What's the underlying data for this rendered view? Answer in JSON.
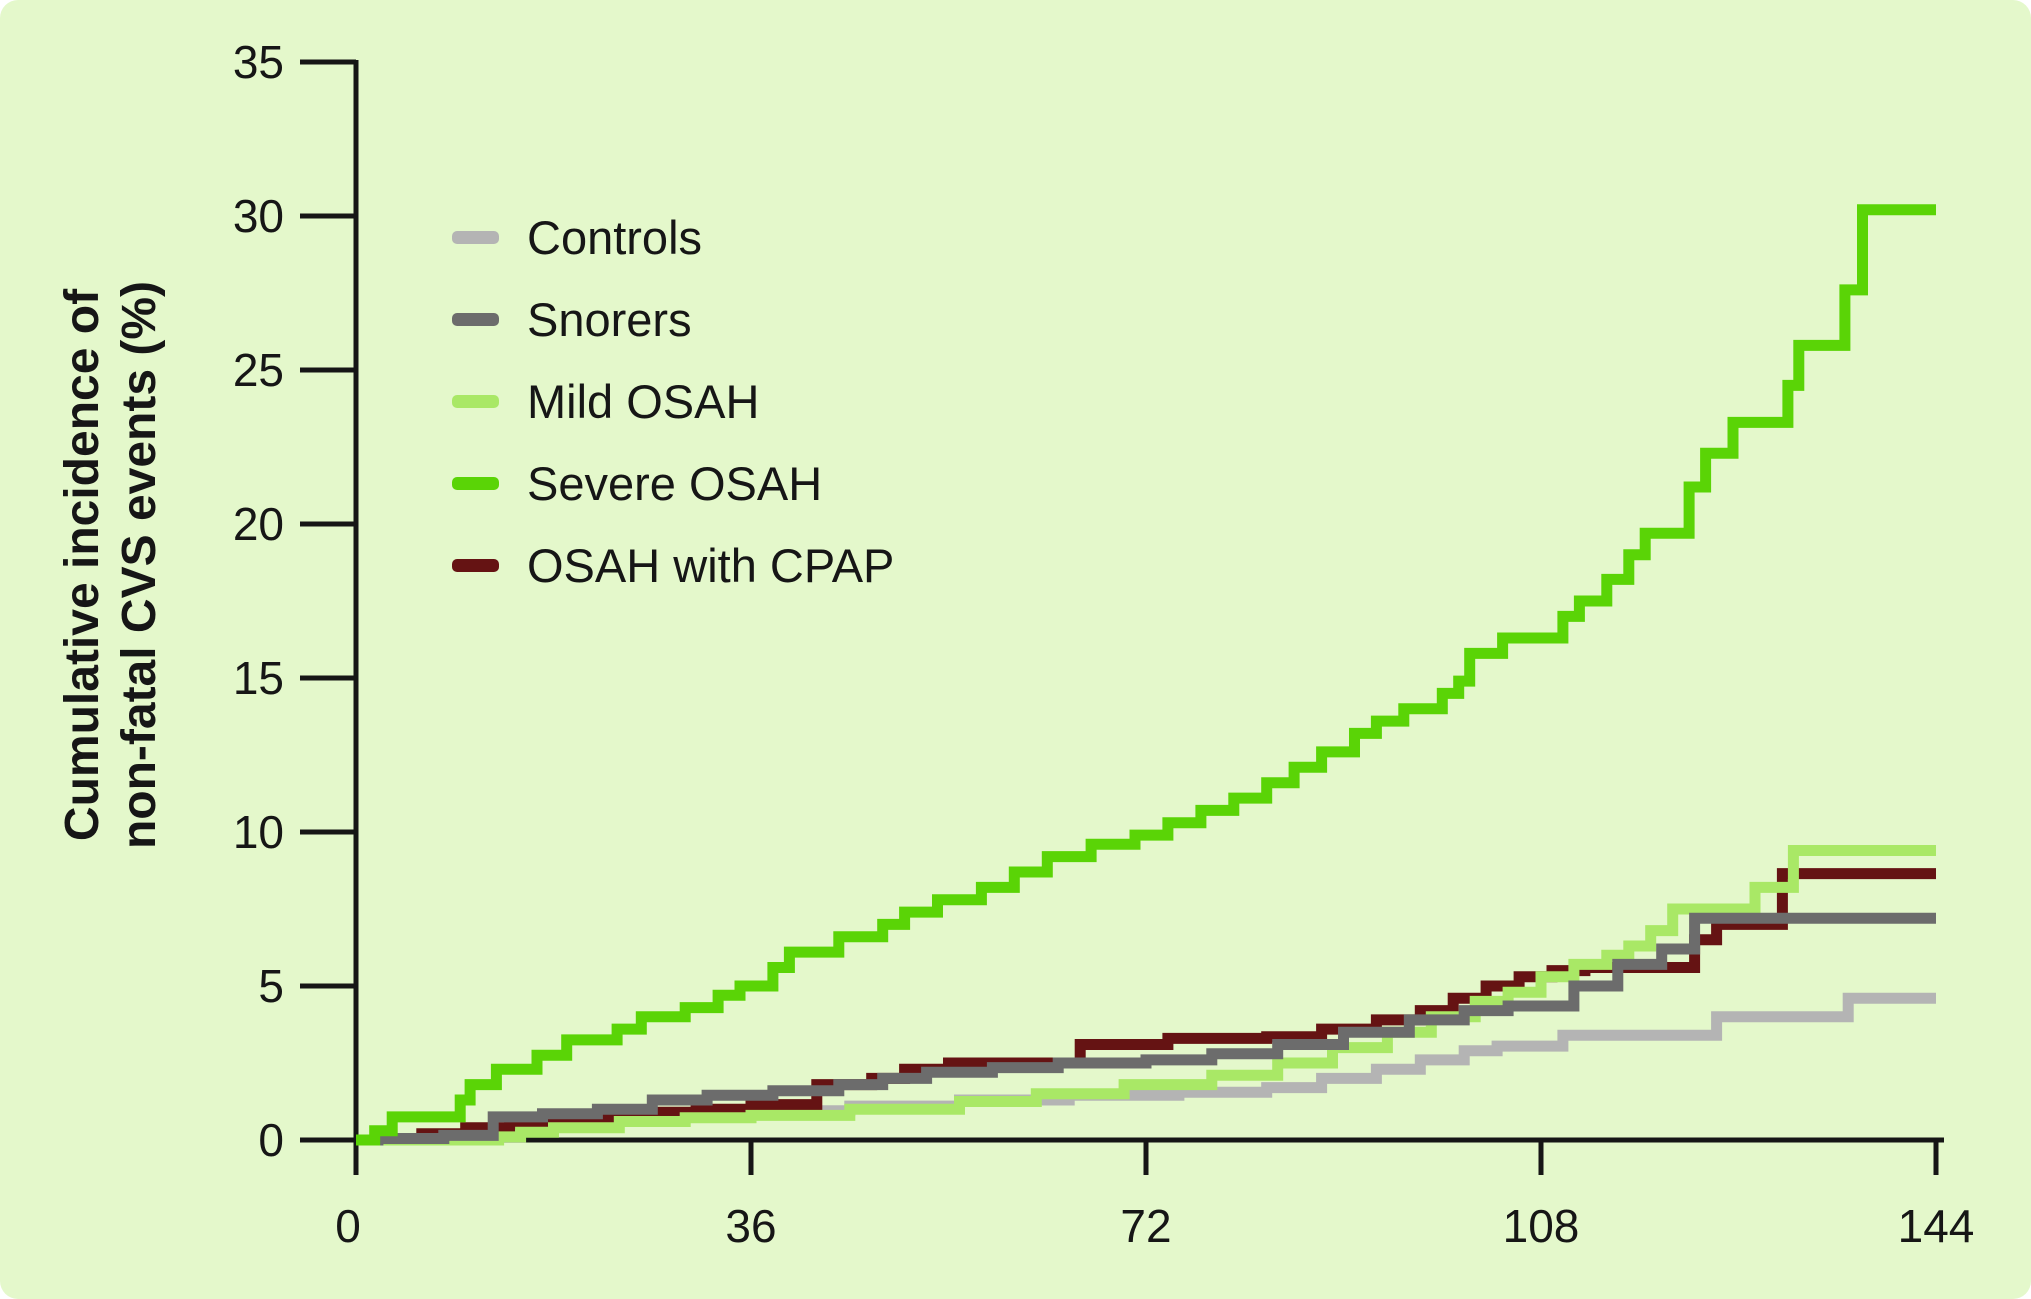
{
  "figure": {
    "background_color": "#e4f8cb",
    "text_color": "#161616",
    "axis_color": "#161616"
  },
  "chart_data": {
    "type": "line",
    "subtype": "step-after",
    "title": "",
    "xlabel": "",
    "ylabel": "Cumulative incidence of non-fatal CVS events (%)",
    "ylabel_line1": "Cumulative incidence of",
    "ylabel_line2": "non-fatal CVS events (%)",
    "xlim": [
      0,
      144
    ],
    "ylim": [
      0,
      35
    ],
    "x_ticks": [
      0,
      36,
      72,
      108,
      144
    ],
    "y_ticks": [
      0,
      5,
      10,
      15,
      20,
      25,
      30,
      35
    ],
    "grid": false,
    "legend_position": "upper-left-inside",
    "series": [
      {
        "name": "Controls",
        "color": "#b4b4b4",
        "end_value": 4.6,
        "points": [
          [
            0,
            0
          ],
          [
            3,
            0.05
          ],
          [
            12,
            0.3
          ],
          [
            15,
            0.55
          ],
          [
            20,
            0.65
          ],
          [
            27,
            0.8
          ],
          [
            35,
            0.95
          ],
          [
            45,
            1.1
          ],
          [
            55,
            1.3
          ],
          [
            65,
            1.45
          ],
          [
            75,
            1.55
          ],
          [
            83,
            1.7
          ],
          [
            88,
            2.0
          ],
          [
            93,
            2.3
          ],
          [
            97,
            2.6
          ],
          [
            101,
            2.9
          ],
          [
            104,
            3.05
          ],
          [
            110,
            3.4
          ],
          [
            124,
            4.0
          ],
          [
            136,
            4.6
          ],
          [
            144,
            4.6
          ]
        ]
      },
      {
        "name": "Snorers",
        "color": "#6c6c6c",
        "end_value": 7.2,
        "points": [
          [
            0,
            0
          ],
          [
            2,
            0.05
          ],
          [
            8,
            0.15
          ],
          [
            12.5,
            0.75
          ],
          [
            17,
            0.85
          ],
          [
            22,
            1.0
          ],
          [
            27,
            1.3
          ],
          [
            32,
            1.45
          ],
          [
            38,
            1.6
          ],
          [
            44,
            1.8
          ],
          [
            48,
            2.0
          ],
          [
            52,
            2.2
          ],
          [
            58,
            2.35
          ],
          [
            64,
            2.5
          ],
          [
            72,
            2.6
          ],
          [
            78,
            2.8
          ],
          [
            84,
            3.1
          ],
          [
            90,
            3.5
          ],
          [
            96,
            3.9
          ],
          [
            101,
            4.2
          ],
          [
            105,
            4.35
          ],
          [
            111,
            5.0
          ],
          [
            115,
            5.7
          ],
          [
            119,
            6.2
          ],
          [
            122,
            7.2
          ],
          [
            144,
            7.2
          ]
        ]
      },
      {
        "name": "Mild OSAH",
        "color": "#a9e866",
        "end_value": 9.4,
        "points": [
          [
            0,
            0
          ],
          [
            13,
            0.1
          ],
          [
            15,
            0.25
          ],
          [
            18,
            0.4
          ],
          [
            24,
            0.6
          ],
          [
            30,
            0.72
          ],
          [
            36,
            0.8
          ],
          [
            45,
            1.0
          ],
          [
            55,
            1.25
          ],
          [
            62,
            1.5
          ],
          [
            70,
            1.8
          ],
          [
            78,
            2.1
          ],
          [
            84,
            2.5
          ],
          [
            89,
            3.0
          ],
          [
            94,
            3.5
          ],
          [
            98,
            4.0
          ],
          [
            102,
            4.5
          ],
          [
            105,
            4.8
          ],
          [
            108,
            5.3
          ],
          [
            111,
            5.7
          ],
          [
            114,
            6.0
          ],
          [
            116,
            6.3
          ],
          [
            118,
            6.8
          ],
          [
            120,
            7.5
          ],
          [
            127.5,
            8.2
          ],
          [
            131,
            9.4
          ],
          [
            144,
            9.4
          ]
        ]
      },
      {
        "name": "Severe OSAH",
        "color": "#5ad406",
        "end_value": 30.2,
        "points": [
          [
            0,
            0
          ],
          [
            1.7,
            0.3
          ],
          [
            3.3,
            0.75
          ],
          [
            9.5,
            1.3
          ],
          [
            10.4,
            1.8
          ],
          [
            12.8,
            2.3
          ],
          [
            16.5,
            2.75
          ],
          [
            19.2,
            3.25
          ],
          [
            23.8,
            3.6
          ],
          [
            26,
            4.0
          ],
          [
            30,
            4.3
          ],
          [
            33,
            4.7
          ],
          [
            35,
            5.0
          ],
          [
            38,
            5.6
          ],
          [
            39.5,
            6.1
          ],
          [
            44,
            6.6
          ],
          [
            48,
            7.0
          ],
          [
            50,
            7.4
          ],
          [
            53,
            7.8
          ],
          [
            57,
            8.2
          ],
          [
            60,
            8.7
          ],
          [
            63,
            9.2
          ],
          [
            67,
            9.6
          ],
          [
            71,
            9.9
          ],
          [
            74,
            10.3
          ],
          [
            77,
            10.7
          ],
          [
            80,
            11.1
          ],
          [
            83,
            11.6
          ],
          [
            85.5,
            12.1
          ],
          [
            88,
            12.6
          ],
          [
            91,
            13.2
          ],
          [
            93,
            13.6
          ],
          [
            95.5,
            14.0
          ],
          [
            99,
            14.5
          ],
          [
            100.5,
            14.9
          ],
          [
            101.5,
            15.8
          ],
          [
            104.5,
            16.3
          ],
          [
            110,
            17.0
          ],
          [
            111.5,
            17.5
          ],
          [
            114,
            18.2
          ],
          [
            116,
            19.0
          ],
          [
            117.5,
            19.7
          ],
          [
            121.5,
            21.2
          ],
          [
            123,
            22.3
          ],
          [
            125.5,
            23.3
          ],
          [
            130.5,
            24.5
          ],
          [
            131.5,
            25.8
          ],
          [
            135.7,
            27.6
          ],
          [
            137.3,
            30.2
          ],
          [
            144,
            30.2
          ]
        ]
      },
      {
        "name": "OSAH with CPAP",
        "color": "#651313",
        "end_value": 8.65,
        "points": [
          [
            0,
            0
          ],
          [
            2,
            0.05
          ],
          [
            6,
            0.2
          ],
          [
            10,
            0.4
          ],
          [
            14,
            0.55
          ],
          [
            19,
            0.65
          ],
          [
            26,
            0.9
          ],
          [
            31,
            1.0
          ],
          [
            36,
            1.15
          ],
          [
            42,
            1.8
          ],
          [
            47,
            2.0
          ],
          [
            50,
            2.3
          ],
          [
            54,
            2.5
          ],
          [
            66,
            3.1
          ],
          [
            74,
            3.3
          ],
          [
            83,
            3.35
          ],
          [
            88,
            3.6
          ],
          [
            93,
            3.9
          ],
          [
            97,
            4.2
          ],
          [
            100,
            4.6
          ],
          [
            103,
            5.0
          ],
          [
            106,
            5.3
          ],
          [
            109,
            5.5
          ],
          [
            112,
            5.6
          ],
          [
            122,
            6.5
          ],
          [
            124,
            7.0
          ],
          [
            130,
            8.65
          ],
          [
            144,
            8.65
          ]
        ]
      }
    ],
    "draw_order": [
      0,
      4,
      2,
      1,
      3
    ],
    "line_width": 11
  }
}
